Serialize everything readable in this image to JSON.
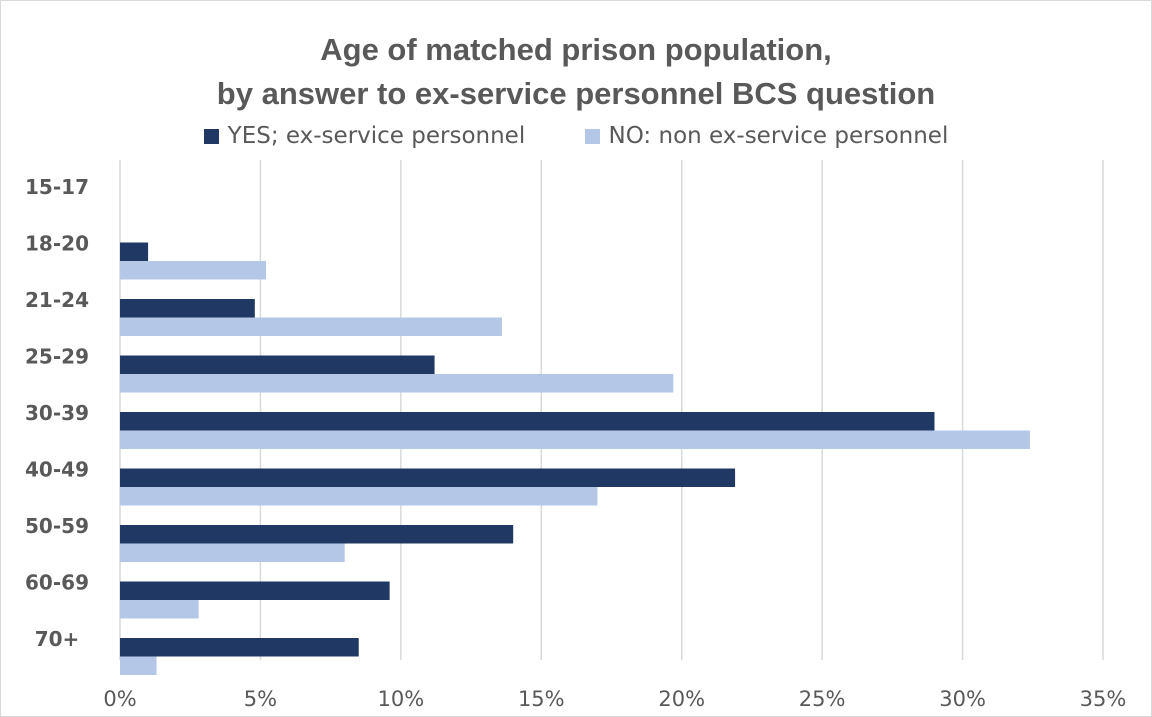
{
  "chart_data": {
    "type": "bar",
    "orientation": "horizontal",
    "title_lines": [
      "Age of matched prison population,",
      "by answer to ex-service personnel BCS question"
    ],
    "categories": [
      "15-17",
      "18-20",
      "21-24",
      "25-29",
      "30-39",
      "40-49",
      "50-59",
      "60-69",
      "70+"
    ],
    "series": [
      {
        "name": "YES; ex-service personnel",
        "color": "#1f3864",
        "values": [
          0,
          1.0,
          4.8,
          11.2,
          29.0,
          21.9,
          14.0,
          9.6,
          8.5
        ]
      },
      {
        "name": "NO: non ex-service personnel",
        "color": "#b4c7e7",
        "values": [
          0,
          5.2,
          13.6,
          19.7,
          32.4,
          17.0,
          8.0,
          2.8,
          1.3
        ]
      }
    ],
    "x_ticks": [
      "0%",
      "5%",
      "10%",
      "15%",
      "20%",
      "25%",
      "30%",
      "35%"
    ],
    "xlim": [
      0,
      35
    ],
    "grid": true,
    "legend_position": "top",
    "gridline_color": "#d9d9d9"
  }
}
